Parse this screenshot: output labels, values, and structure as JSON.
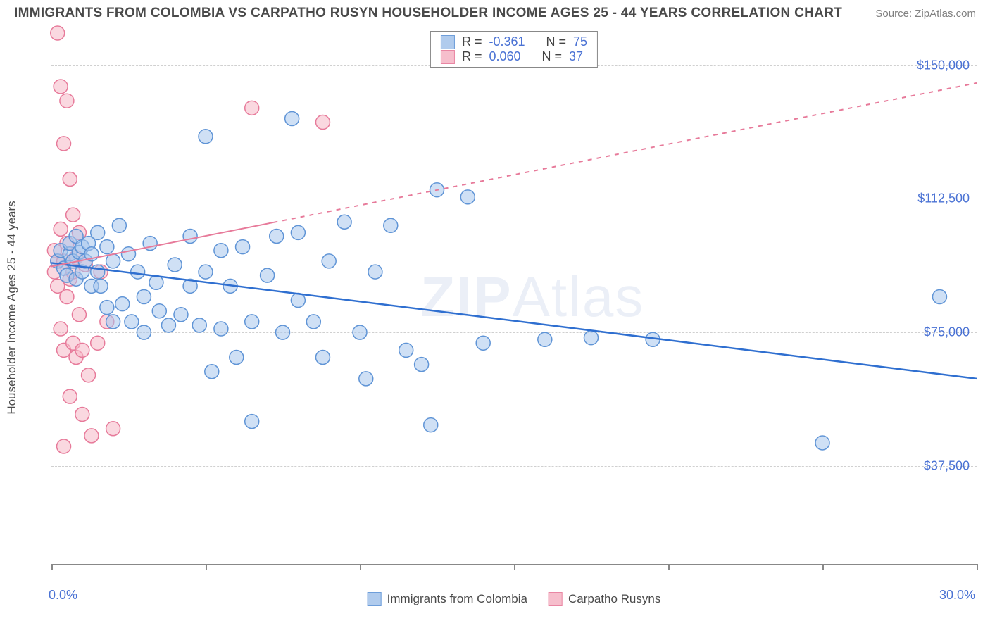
{
  "header": {
    "title": "IMMIGRANTS FROM COLOMBIA VS CARPATHO RUSYN HOUSEHOLDER INCOME AGES 25 - 44 YEARS CORRELATION CHART",
    "source_prefix": "Source: ",
    "source_name": "ZipAtlas.com"
  },
  "chart": {
    "type": "scatter",
    "y_axis_label": "Householder Income Ages 25 - 44 years",
    "watermark": "ZIPAtlas",
    "xlim": [
      0,
      30
    ],
    "ylim": [
      10000,
      160000
    ],
    "x_tick_positions": [
      0,
      5,
      10,
      15,
      20,
      25,
      30
    ],
    "x_tick_labels_shown": {
      "0": "0.0%",
      "30": "30.0%"
    },
    "y_gridlines": [
      37500,
      75000,
      112500,
      150000
    ],
    "y_tick_labels": [
      "$37,500",
      "$75,000",
      "$112,500",
      "$150,000"
    ],
    "background_color": "#ffffff",
    "grid_color": "#d0d0d0",
    "axis_color": "#888888",
    "label_color": "#4a72d4",
    "marker_radius": 10,
    "marker_stroke_width": 1.5,
    "series": [
      {
        "name": "Immigrants from Colombia",
        "fill": "#a8c6ec",
        "stroke": "#5f94d6",
        "fill_opacity": 0.55,
        "R": "-0.361",
        "N": "75",
        "trend": {
          "x1": 0,
          "y1": 94500,
          "x2": 30,
          "y2": 62000,
          "color": "#2f6fd0",
          "width": 2.5,
          "dash": "none"
        },
        "points": [
          [
            0.2,
            95000
          ],
          [
            0.3,
            98000
          ],
          [
            0.4,
            93000
          ],
          [
            0.5,
            91000
          ],
          [
            0.6,
            97000
          ],
          [
            0.6,
            100000
          ],
          [
            0.7,
            95000
          ],
          [
            0.8,
            90000
          ],
          [
            0.8,
            102000
          ],
          [
            0.9,
            97500
          ],
          [
            1.0,
            99000
          ],
          [
            1.0,
            92000
          ],
          [
            1.1,
            95000
          ],
          [
            1.2,
            100000
          ],
          [
            1.3,
            97000
          ],
          [
            1.3,
            88000
          ],
          [
            1.5,
            103000
          ],
          [
            1.5,
            92000
          ],
          [
            1.6,
            88000
          ],
          [
            1.8,
            99000
          ],
          [
            1.8,
            82000
          ],
          [
            2.0,
            95000
          ],
          [
            2.0,
            78000
          ],
          [
            2.2,
            105000
          ],
          [
            2.3,
            83000
          ],
          [
            2.5,
            97000
          ],
          [
            2.6,
            78000
          ],
          [
            2.8,
            92000
          ],
          [
            3.0,
            85000
          ],
          [
            3.0,
            75000
          ],
          [
            3.2,
            100000
          ],
          [
            3.4,
            89000
          ],
          [
            3.5,
            81000
          ],
          [
            3.8,
            77000
          ],
          [
            4.0,
            94000
          ],
          [
            4.2,
            80000
          ],
          [
            4.5,
            102000
          ],
          [
            4.5,
            88000
          ],
          [
            4.8,
            77000
          ],
          [
            5.0,
            92000
          ],
          [
            5.0,
            130000
          ],
          [
            5.2,
            64000
          ],
          [
            5.5,
            98000
          ],
          [
            5.5,
            76000
          ],
          [
            5.8,
            88000
          ],
          [
            6.0,
            68000
          ],
          [
            6.2,
            99000
          ],
          [
            6.5,
            78000
          ],
          [
            6.5,
            50000
          ],
          [
            7.0,
            91000
          ],
          [
            7.3,
            102000
          ],
          [
            7.5,
            75000
          ],
          [
            7.8,
            135000
          ],
          [
            8.0,
            84000
          ],
          [
            8.0,
            103000
          ],
          [
            8.5,
            78000
          ],
          [
            8.8,
            68000
          ],
          [
            9.0,
            95000
          ],
          [
            9.5,
            106000
          ],
          [
            10.0,
            75000
          ],
          [
            10.2,
            62000
          ],
          [
            10.5,
            92000
          ],
          [
            11.0,
            105000
          ],
          [
            11.5,
            70000
          ],
          [
            12.0,
            66000
          ],
          [
            12.3,
            49000
          ],
          [
            12.5,
            115000
          ],
          [
            13.5,
            113000
          ],
          [
            14.0,
            72000
          ],
          [
            16.0,
            73000
          ],
          [
            17.5,
            73500
          ],
          [
            19.5,
            73000
          ],
          [
            25.0,
            44000
          ],
          [
            28.8,
            85000
          ]
        ]
      },
      {
        "name": "Carpatho Rusyns",
        "fill": "#f6b8c7",
        "stroke": "#e77a9a",
        "fill_opacity": 0.55,
        "R": "0.060",
        "N": "37",
        "trend": {
          "x1": 0,
          "y1": 93500,
          "x2": 30,
          "y2": 145000,
          "color": "#e77a9a",
          "width": 2,
          "dash": "solid-then-dash",
          "solid_until_x": 7.2
        },
        "points": [
          [
            0.1,
            92000
          ],
          [
            0.1,
            98000
          ],
          [
            0.2,
            159000
          ],
          [
            0.2,
            95000
          ],
          [
            0.2,
            88000
          ],
          [
            0.3,
            144000
          ],
          [
            0.3,
            104000
          ],
          [
            0.3,
            76000
          ],
          [
            0.4,
            128000
          ],
          [
            0.4,
            95000
          ],
          [
            0.4,
            70000
          ],
          [
            0.4,
            43000
          ],
          [
            0.5,
            140000
          ],
          [
            0.5,
            100000
          ],
          [
            0.5,
            85000
          ],
          [
            0.6,
            118000
          ],
          [
            0.6,
            90000
          ],
          [
            0.6,
            57000
          ],
          [
            0.7,
            108000
          ],
          [
            0.7,
            92000
          ],
          [
            0.7,
            72000
          ],
          [
            0.8,
            96000
          ],
          [
            0.8,
            68000
          ],
          [
            0.9,
            103000
          ],
          [
            0.9,
            80000
          ],
          [
            1.0,
            70000
          ],
          [
            1.0,
            52000
          ],
          [
            1.1,
            94000
          ],
          [
            1.2,
            63000
          ],
          [
            1.3,
            46000
          ],
          [
            1.5,
            72000
          ],
          [
            1.6,
            92000
          ],
          [
            1.8,
            78000
          ],
          [
            2.0,
            48000
          ],
          [
            6.5,
            138000
          ],
          [
            8.8,
            134000
          ]
        ]
      }
    ],
    "stats_box": {
      "r_label": "R =",
      "n_label": "N ="
    },
    "bottom_legend": {
      "series1_label": "Immigrants from Colombia",
      "series2_label": "Carpatho Rusyns"
    }
  }
}
